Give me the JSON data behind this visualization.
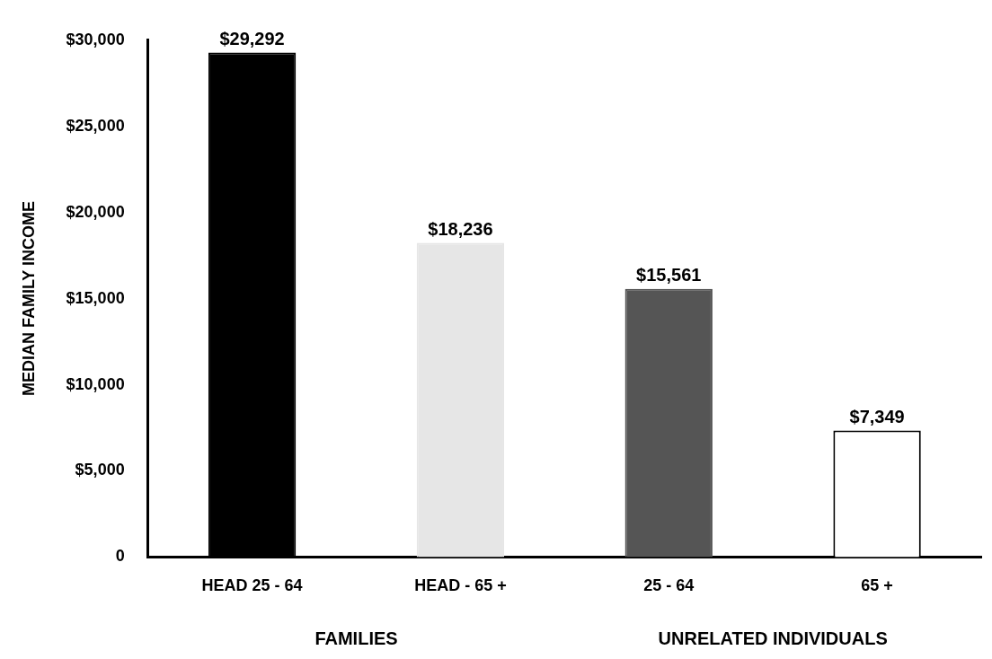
{
  "chart_data": {
    "type": "bar",
    "ylabel": "MEDIAN FAMILY INCOME",
    "categories": [
      "HEAD 25 - 64",
      "HEAD - 65 +",
      "25 - 64",
      "65 +"
    ],
    "values": [
      29292,
      18236,
      15561,
      7349
    ],
    "colors": [
      "#000000",
      "#e6e6e6",
      "#555555",
      "#ffffff"
    ],
    "value_labels": [
      "$29,292",
      "$18,236",
      "$15,561",
      "$7,349"
    ],
    "ylim": [
      0,
      30000
    ],
    "yticks": [
      {
        "value": 0,
        "label": "0"
      },
      {
        "value": 5000,
        "label": "$5,000"
      },
      {
        "value": 10000,
        "label": "$10,000"
      },
      {
        "value": 15000,
        "label": "$15,000"
      },
      {
        "value": 20000,
        "label": "$20,000"
      },
      {
        "value": 25000,
        "label": "$25,000"
      },
      {
        "value": 30000,
        "label": "$30,000"
      }
    ],
    "annotations": [
      "FAMILIES",
      "UNRELATED INDIVIDUALS"
    ],
    "grid": false,
    "legend": false
  }
}
